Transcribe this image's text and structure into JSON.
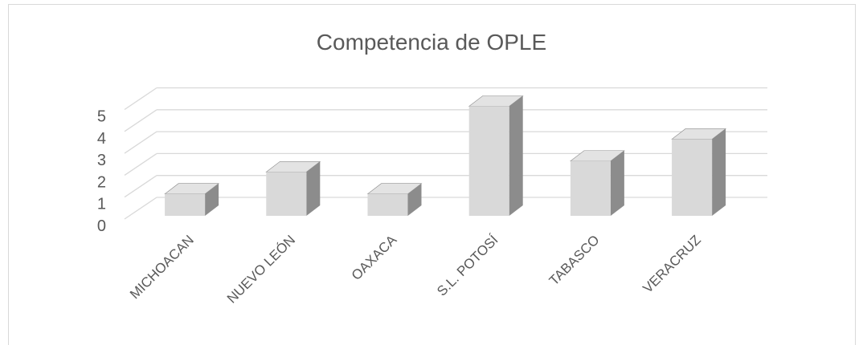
{
  "chart_data": {
    "type": "bar3d",
    "title": "Competencia de OPLE",
    "categories": [
      "MICHOACAN",
      "NUEVO LEÓN",
      "OAXACA",
      "S.L. POTOSÍ",
      "TABASCO",
      "VERACRUZ"
    ],
    "values": [
      1,
      2,
      1,
      5,
      2.5,
      3.5
    ],
    "color": "#d9d9d9",
    "ylim": [
      0,
      5
    ],
    "yticks": [
      0,
      1,
      2,
      3,
      4,
      5
    ],
    "grid": true
  }
}
